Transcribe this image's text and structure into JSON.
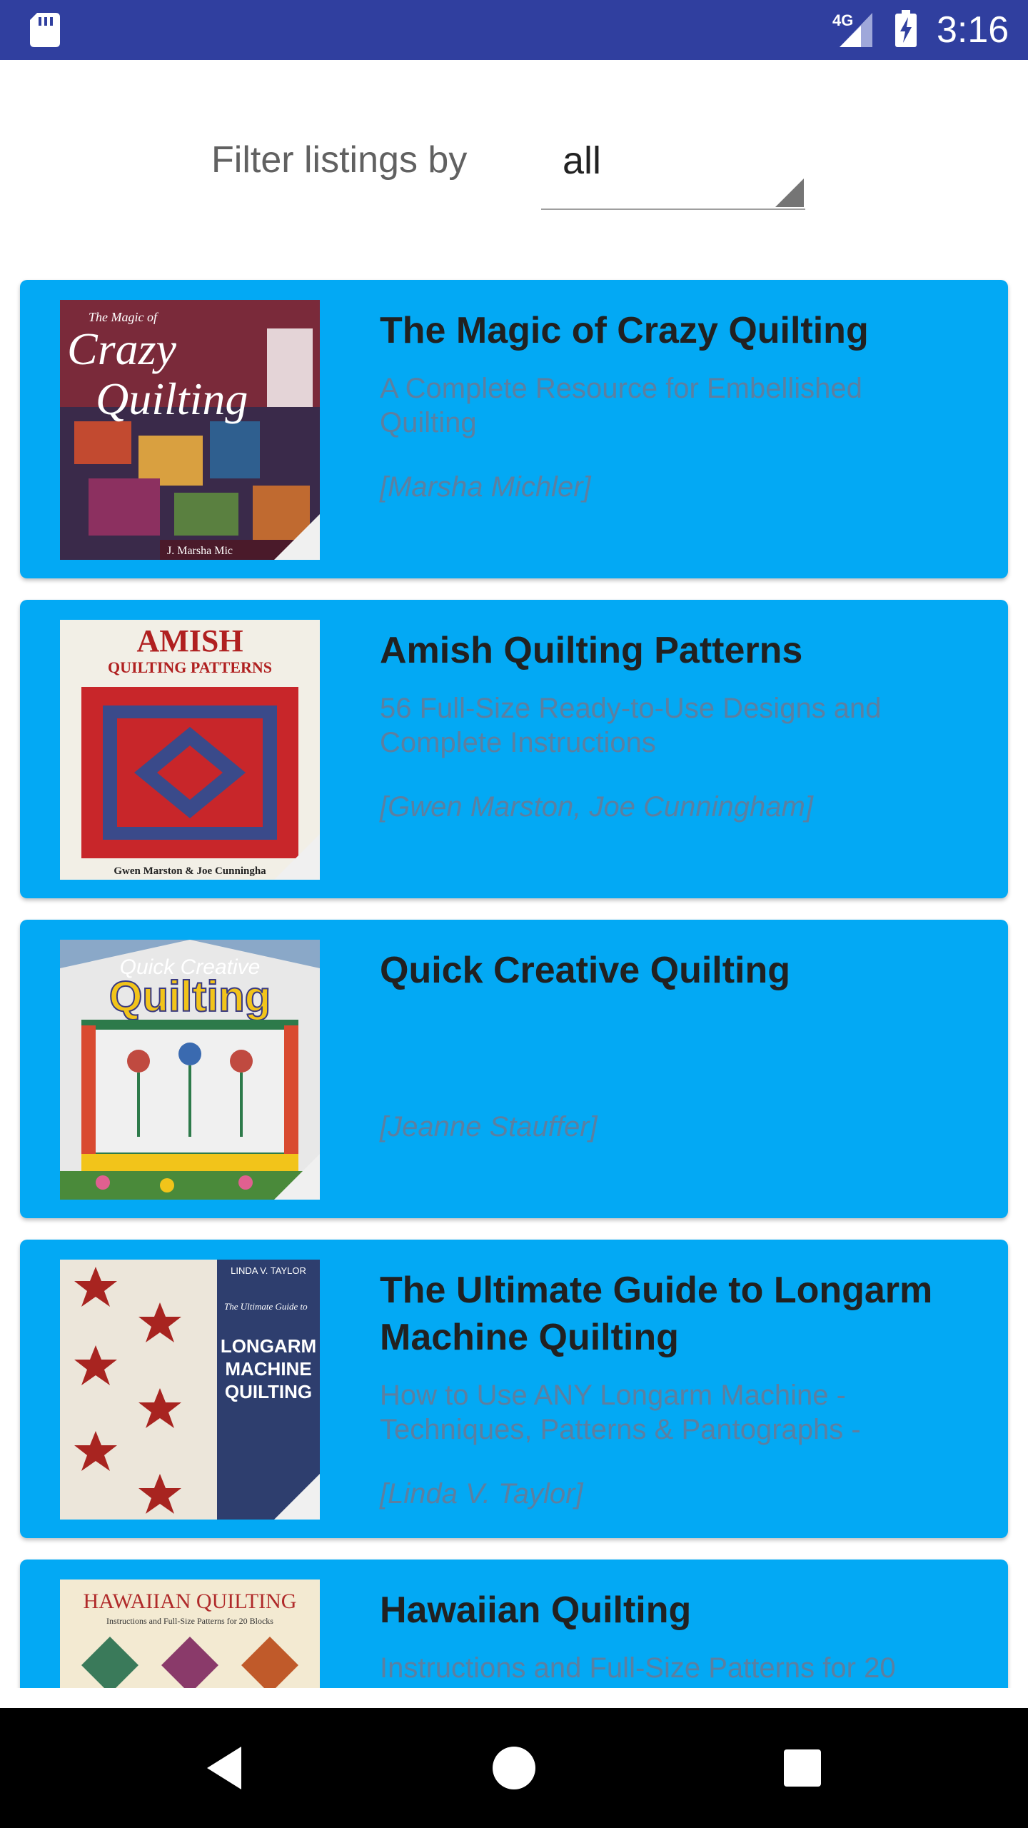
{
  "status_bar": {
    "network": "4G",
    "time": "3:16"
  },
  "filter": {
    "label": "Filter listings by",
    "value": "all"
  },
  "listings": [
    {
      "title": "The Magic of Crazy Quilting",
      "subtitle": "A Complete Resource for Embellished Quilting",
      "author": "[Marsha Michler]",
      "cover_text": [
        "The Magic of",
        "Crazy",
        "Quilting",
        "J. Marsha Mic"
      ]
    },
    {
      "title": "Amish Quilting Patterns",
      "subtitle": "56 Full-Size Ready-to-Use Designs and Complete Instructions",
      "author": "[Gwen Marston, Joe Cunningham]",
      "cover_text": [
        "AMISH",
        "QUILTING PATTERNS",
        "Gwen Marston & Joe Cunningha"
      ]
    },
    {
      "title": "Quick Creative Quilting",
      "subtitle": "",
      "author": "[Jeanne Stauffer]",
      "cover_text": [
        "Quick Creative",
        "Quilting"
      ]
    },
    {
      "title": "The Ultimate Guide to Longarm Machine Quilting",
      "subtitle": "How to Use ANY Longarm Machine - Techniques, Patterns & Pantographs -",
      "author": "[Linda V. Taylor]",
      "cover_text": [
        "LINDA V. TAYLOR",
        "The Ultimate Guide to",
        "LONGARM",
        "MACHINE",
        "QUILTING"
      ]
    },
    {
      "title": "Hawaiian Quilting",
      "subtitle": "Instructions and Full-Size Patterns for 20",
      "author": "",
      "cover_text": [
        "HAWAIIAN QUILTING",
        "Instructions and Full-Size Patterns for 20 Blocks"
      ]
    }
  ],
  "colors": {
    "status_bar": "#303f9f",
    "card": "#03a9f4",
    "title_text": "#212121",
    "secondary_text": "#5d7fa0"
  },
  "icons": {
    "sd_card": "sd-card-icon",
    "signal": "signal-icon",
    "battery": "battery-charging-icon",
    "dropdown": "dropdown-arrow-icon",
    "back": "back-icon",
    "home": "home-icon",
    "recents": "recents-icon"
  }
}
